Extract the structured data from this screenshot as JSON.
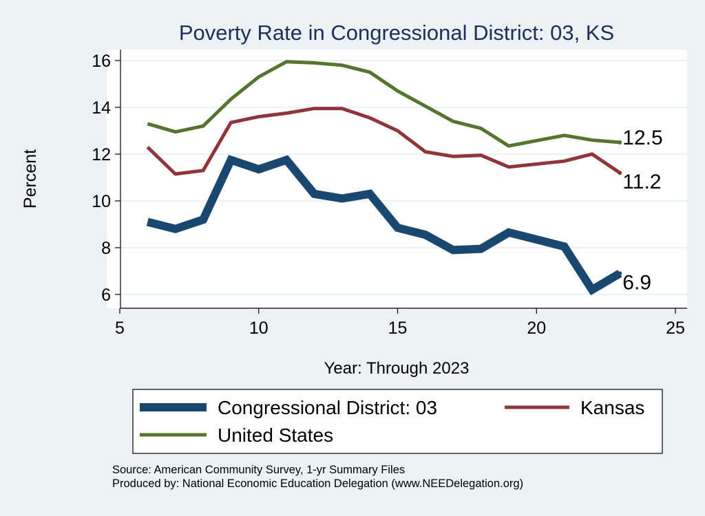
{
  "chart_data": {
    "type": "line",
    "title": "Poverty Rate in Congressional District:  03, KS",
    "xlabel": "Year: Through 2023",
    "ylabel": "Percent",
    "xlim": [
      5,
      25
    ],
    "ylim": [
      5.5,
      16.5
    ],
    "xticks": [
      5,
      10,
      15,
      20,
      25
    ],
    "yticks": [
      6,
      8,
      10,
      12,
      14,
      16
    ],
    "grid": true,
    "legend_position": "bottom",
    "series": [
      {
        "name": "Congressional District:  03",
        "color": "#1a476f",
        "x": [
          6,
          7,
          8,
          9,
          10,
          11,
          12,
          13,
          14,
          15,
          16,
          17,
          18,
          19,
          21,
          22,
          23
        ],
        "values": [
          9.1,
          8.8,
          9.2,
          11.75,
          11.35,
          11.75,
          10.3,
          10.1,
          10.3,
          8.85,
          8.55,
          7.9,
          7.95,
          8.65,
          8.05,
          6.2,
          6.9
        ],
        "end_label": "6.9"
      },
      {
        "name": "Kansas",
        "color": "#90353b",
        "x": [
          6,
          7,
          8,
          9,
          10,
          11,
          12,
          13,
          14,
          15,
          16,
          17,
          18,
          19,
          21,
          22,
          23
        ],
        "values": [
          12.3,
          11.15,
          11.3,
          13.35,
          13.6,
          13.75,
          13.95,
          13.95,
          13.55,
          13.0,
          12.1,
          11.9,
          11.95,
          11.45,
          11.7,
          12.0,
          11.2
        ],
        "end_label": "11.2"
      },
      {
        "name": "United States",
        "color": "#55752f",
        "x": [
          6,
          7,
          8,
          9,
          10,
          11,
          12,
          13,
          14,
          15,
          16,
          17,
          18,
          19,
          21,
          22,
          23
        ],
        "values": [
          13.3,
          12.95,
          13.2,
          14.35,
          15.3,
          15.95,
          15.9,
          15.8,
          15.5,
          14.7,
          14.05,
          13.4,
          13.1,
          12.35,
          12.8,
          12.6,
          12.5
        ],
        "end_label": "12.5"
      }
    ],
    "legend": {
      "rows": [
        [
          "Congressional District:  03",
          "Kansas"
        ],
        [
          "United States"
        ]
      ]
    },
    "notes": [
      "Source: American Community Survey, 1-yr Summary Files",
      "Produced by: National Economic Education Delegation (www.NEEDelegation.org)"
    ]
  }
}
